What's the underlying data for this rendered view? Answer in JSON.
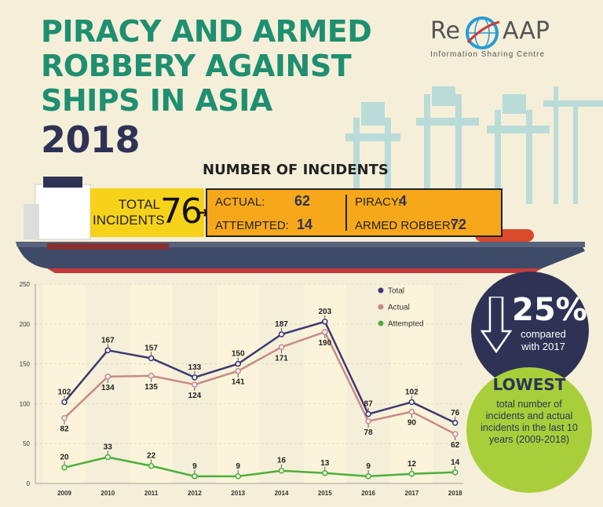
{
  "header": {
    "title": "PIRACY AND ARMED ROBBERY AGAINST SHIPS IN ASIA",
    "year": "2018"
  },
  "logo": {
    "re": "Re",
    "aap": "AAP",
    "subtitle": "Information Sharing Centre"
  },
  "incidents": {
    "title": "NUMBER OF INCIDENTS",
    "total_label": "TOTAL INCIDENTS",
    "total_value": "76",
    "actual_label": "ACTUAL:",
    "actual_value": "62",
    "attempted_label": "ATTEMPTED:",
    "attempted_value": "14",
    "piracy_label": "PIRACY:",
    "piracy_value": "4",
    "armed_label": "ARMED ROBBERY:",
    "armed_value": "72"
  },
  "callout_decrease": {
    "percent": "25%",
    "text": "compared with 2017"
  },
  "callout_lowest": {
    "title": "LOWEST",
    "text": "total number of incidents and actual incidents in the last 10 years (2009-2018)"
  },
  "colors": {
    "total": "#3b3a73",
    "actual": "#c98a86",
    "attempted": "#4caf3a"
  },
  "chart_data": {
    "type": "line",
    "x": [
      "2009",
      "2010",
      "2011",
      "2012",
      "2013",
      "2014",
      "2015",
      "2016",
      "2017",
      "2018"
    ],
    "ylim": [
      0,
      250
    ],
    "yticks": [
      0,
      50,
      100,
      150,
      200,
      250
    ],
    "legend_position": "top-right",
    "series": [
      {
        "name": "Total",
        "values": [
          102,
          167,
          157,
          133,
          150,
          187,
          203,
          87,
          102,
          76
        ]
      },
      {
        "name": "Actual",
        "values": [
          82,
          134,
          135,
          124,
          141,
          171,
          190,
          78,
          90,
          62
        ]
      },
      {
        "name": "Attempted",
        "values": [
          20,
          33,
          22,
          9,
          9,
          16,
          13,
          9,
          12,
          14
        ]
      }
    ]
  }
}
